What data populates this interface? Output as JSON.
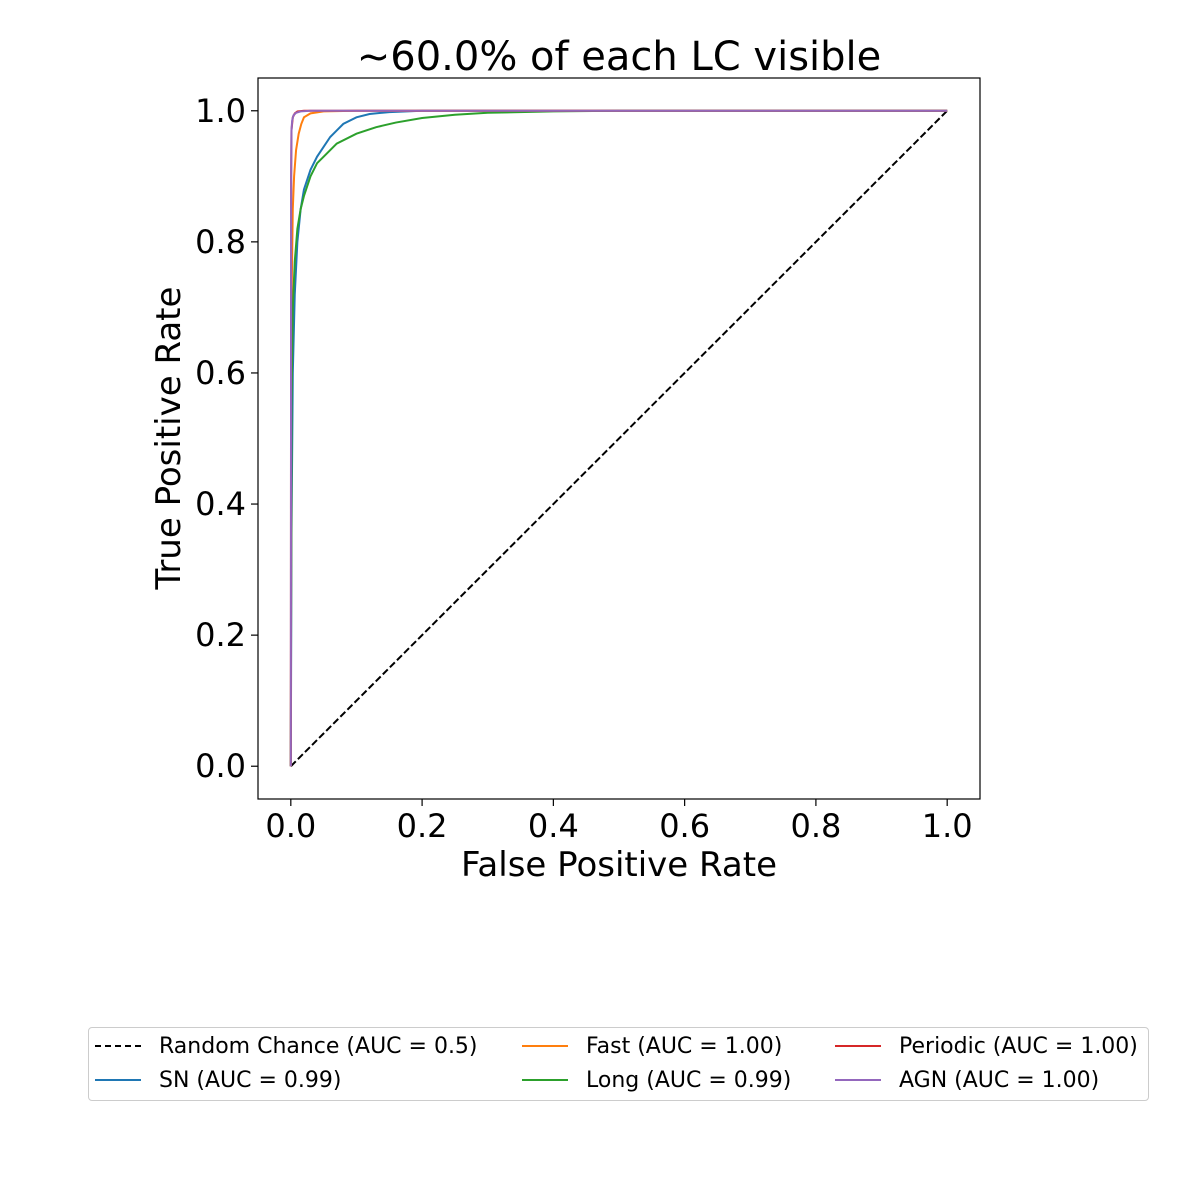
{
  "chart_data": {
    "type": "line",
    "title": "~60.0% of each LC visible",
    "xlabel": "False Positive Rate",
    "ylabel": "True Positive Rate",
    "xlim": [
      -0.05,
      1.05
    ],
    "ylim": [
      -0.05,
      1.05
    ],
    "xticks": [
      0.0,
      0.2,
      0.4,
      0.6,
      0.8,
      1.0
    ],
    "yticks": [
      0.0,
      0.2,
      0.4,
      0.6,
      0.8,
      1.0
    ],
    "xtick_labels": [
      "0.0",
      "0.2",
      "0.4",
      "0.6",
      "0.8",
      "1.0"
    ],
    "ytick_labels": [
      "0.0",
      "0.2",
      "0.4",
      "0.6",
      "0.8",
      "1.0"
    ],
    "grid": false,
    "legend_placement": "below plot, 3 columns",
    "series": [
      {
        "name": "Random Chance (AUC = 0.5)",
        "color": "#000000",
        "dash": true,
        "x": [
          0.0,
          1.0
        ],
        "y": [
          0.0,
          1.0
        ]
      },
      {
        "name": "SN (AUC = 0.99)",
        "color": "#1f77b4",
        "dash": false,
        "x": [
          0.0,
          0.001,
          0.003,
          0.006,
          0.01,
          0.015,
          0.02,
          0.03,
          0.04,
          0.05,
          0.06,
          0.07,
          0.08,
          0.1,
          0.12,
          0.15,
          0.2,
          0.3,
          0.5,
          1.0
        ],
        "y": [
          0.0,
          0.35,
          0.6,
          0.72,
          0.8,
          0.85,
          0.88,
          0.91,
          0.93,
          0.945,
          0.96,
          0.97,
          0.98,
          0.99,
          0.995,
          0.998,
          1.0,
          1.0,
          1.0,
          1.0
        ]
      },
      {
        "name": "Fast (AUC = 1.00)",
        "color": "#ff7f0e",
        "dash": false,
        "x": [
          0.0,
          0.001,
          0.003,
          0.005,
          0.008,
          0.012,
          0.016,
          0.02,
          0.03,
          0.05,
          0.1,
          0.2,
          1.0
        ],
        "y": [
          0.0,
          0.7,
          0.85,
          0.9,
          0.94,
          0.965,
          0.98,
          0.99,
          0.996,
          0.999,
          1.0,
          1.0,
          1.0
        ]
      },
      {
        "name": "Long (AUC = 0.99)",
        "color": "#2ca02c",
        "dash": false,
        "x": [
          0.0,
          0.001,
          0.003,
          0.006,
          0.01,
          0.015,
          0.02,
          0.03,
          0.04,
          0.05,
          0.07,
          0.1,
          0.13,
          0.16,
          0.2,
          0.25,
          0.3,
          0.4,
          0.5,
          1.0
        ],
        "y": [
          0.0,
          0.55,
          0.7,
          0.77,
          0.82,
          0.85,
          0.87,
          0.9,
          0.92,
          0.93,
          0.95,
          0.965,
          0.975,
          0.982,
          0.989,
          0.994,
          0.997,
          0.999,
          1.0,
          1.0
        ]
      },
      {
        "name": "Periodic (AUC = 1.00)",
        "color": "#d62728",
        "dash": false,
        "x": [
          0.0,
          0.0005,
          0.001,
          0.003,
          0.006,
          0.01,
          0.02,
          1.0
        ],
        "y": [
          0.0,
          0.9,
          0.97,
          0.99,
          0.996,
          0.999,
          1.0,
          1.0
        ]
      },
      {
        "name": "AGN (AUC = 1.00)",
        "color": "#9467bd",
        "dash": false,
        "x": [
          0.0,
          0.0005,
          0.001,
          0.002,
          0.004,
          0.008,
          0.015,
          0.03,
          1.0
        ],
        "y": [
          0.0,
          0.9,
          0.97,
          0.985,
          0.993,
          0.997,
          0.999,
          1.0,
          1.0
        ]
      }
    ]
  }
}
